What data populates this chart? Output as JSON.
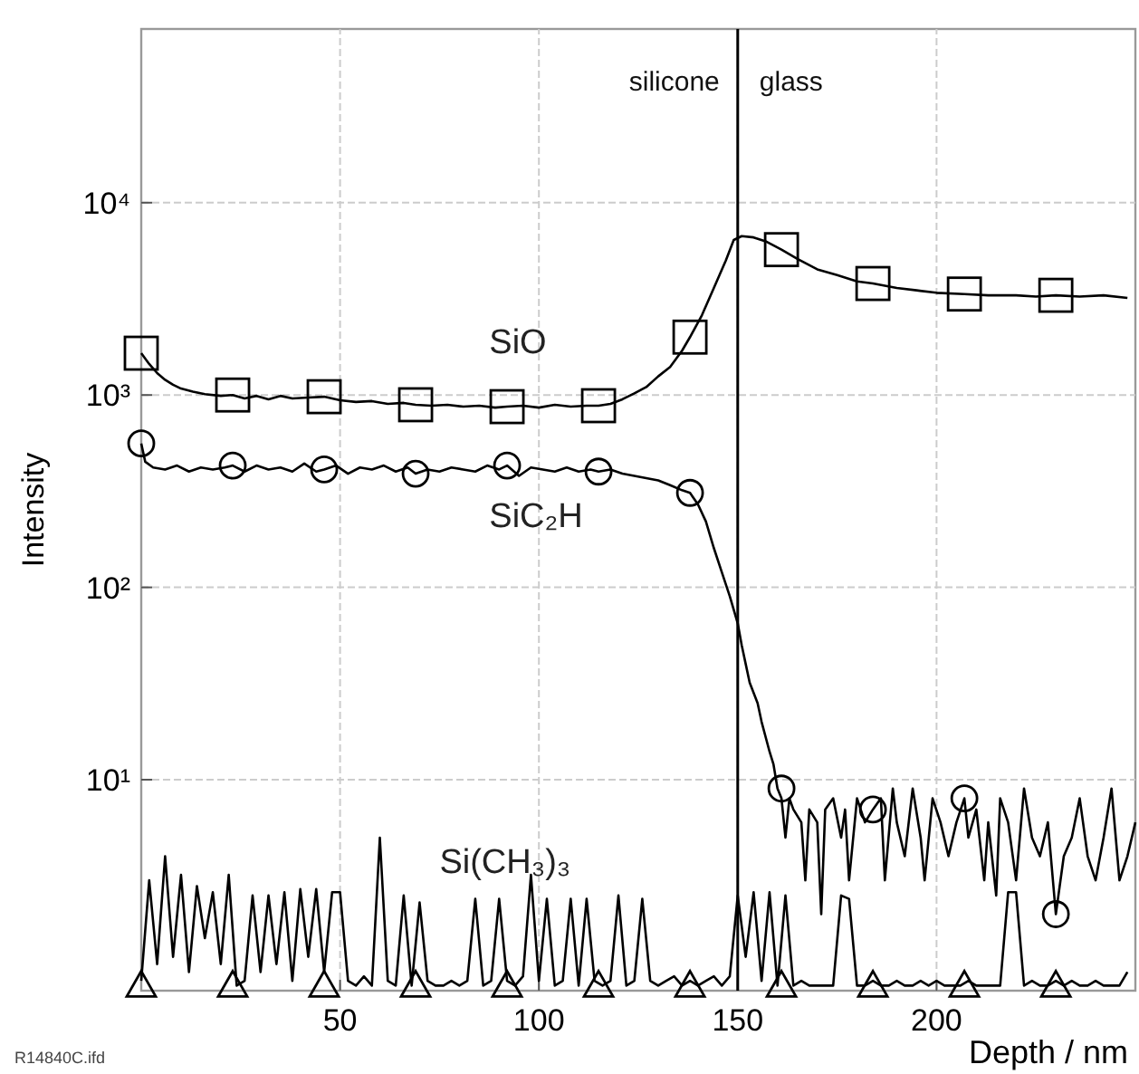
{
  "chart_data": {
    "type": "line",
    "xlabel": "Depth / nm",
    "ylabel": "Intensity",
    "log": "y",
    "grid": true,
    "xlim": [
      0,
      250
    ],
    "xticks": [
      50,
      100,
      150,
      200
    ],
    "ylim": [
      0.8,
      80000
    ],
    "yticks": [
      {
        "value": 10,
        "label": "10¹"
      },
      {
        "value": 100,
        "label": "10²"
      },
      {
        "value": 1000,
        "label": "10³"
      },
      {
        "value": 10000,
        "label": "10⁴"
      }
    ],
    "ref_lines": [
      {
        "axis": "x",
        "value": 150,
        "color": "#000000"
      }
    ],
    "annotations": [
      "silicone",
      "glass",
      "R14840C.ifd"
    ],
    "series": [
      {
        "type": "scatter",
        "color": "#000000",
        "marker": "square",
        "x": [
          0,
          23,
          46,
          69,
          92,
          115,
          138,
          161,
          184,
          207,
          230
        ],
        "values": [
          1650,
          1000,
          980,
          890,
          870,
          880,
          2000,
          5700,
          3800,
          3350,
          3300
        ]
      },
      {
        "type": "scatter",
        "color": "#000000",
        "marker": "circle",
        "x": [
          0,
          23,
          46,
          69,
          92,
          115,
          138,
          161,
          184,
          207,
          230
        ],
        "values": [
          560,
          430,
          410,
          390,
          430,
          400,
          310,
          9,
          7,
          8,
          2
        ]
      },
      {
        "type": "scatter",
        "color": "#000000",
        "marker": "triangle",
        "x": [
          0,
          23,
          46,
          69,
          92,
          115,
          138,
          161,
          184,
          207,
          230
        ],
        "values": [
          0.85,
          0.85,
          0.85,
          0.85,
          0.85,
          0.85,
          0.85,
          0.85,
          0.85,
          0.85,
          0.85
        ]
      },
      {
        "name": "SiO",
        "color": "#000000",
        "x": [
          0,
          2,
          4,
          6,
          8,
          10,
          13,
          16,
          20,
          23,
          26,
          29,
          32,
          35,
          38,
          42,
          46,
          50,
          54,
          58,
          62,
          66,
          69,
          73,
          77,
          81,
          85,
          89,
          92,
          96,
          100,
          104,
          108,
          112,
          115,
          118,
          121,
          124,
          127,
          130,
          133,
          136,
          138,
          141,
          144,
          147,
          149,
          151,
          154,
          157,
          161,
          165,
          170,
          175,
          180,
          184,
          190,
          195,
          200,
          207,
          213,
          220,
          225,
          230,
          236,
          242,
          248
        ],
        "values": [
          1650,
          1450,
          1300,
          1200,
          1130,
          1080,
          1040,
          1010,
          990,
          1000,
          960,
          990,
          950,
          990,
          960,
          970,
          980,
          940,
          920,
          930,
          900,
          910,
          890,
          880,
          890,
          870,
          880,
          860,
          870,
          880,
          860,
          890,
          870,
          880,
          880,
          900,
          950,
          1020,
          1100,
          1250,
          1400,
          1700,
          2000,
          2600,
          3600,
          5000,
          6400,
          6700,
          6600,
          6300,
          5700,
          5100,
          4500,
          4200,
          3900,
          3800,
          3600,
          3500,
          3400,
          3350,
          3300,
          3300,
          3250,
          3300,
          3250,
          3300,
          3200
        ]
      },
      {
        "name": "SiC₂H",
        "color": "#000000",
        "x": [
          0,
          1,
          3,
          6,
          9,
          12,
          15,
          18,
          21,
          23,
          26,
          29,
          32,
          35,
          38,
          41,
          44,
          46,
          49,
          52,
          55,
          58,
          61,
          64,
          67,
          69,
          72,
          75,
          78,
          81,
          84,
          87,
          90,
          92,
          95,
          98,
          101,
          104,
          107,
          110,
          113,
          115,
          118,
          121,
          124,
          127,
          130,
          133,
          136,
          138,
          140,
          142,
          144,
          146,
          148,
          150,
          151,
          152,
          153,
          155,
          156,
          158,
          159,
          160,
          161,
          162,
          163,
          164,
          166,
          167,
          168,
          170,
          171,
          172,
          174,
          176,
          177,
          178,
          180,
          182,
          184,
          186,
          187,
          189,
          190,
          192,
          194,
          196,
          197,
          199,
          201,
          203,
          205,
          207,
          208,
          210,
          212,
          213,
          215,
          216,
          218,
          220,
          222,
          224,
          226,
          228,
          230,
          232,
          234,
          236,
          238,
          240,
          242,
          244,
          246,
          248,
          250
        ],
        "values": [
          560,
          450,
          420,
          410,
          430,
          400,
          420,
          410,
          420,
          430,
          400,
          430,
          410,
          420,
          400,
          440,
          400,
          410,
          430,
          390,
          420,
          410,
          430,
          400,
          420,
          390,
          410,
          400,
          420,
          410,
          400,
          430,
          410,
          430,
          380,
          420,
          410,
          400,
          420,
          400,
          410,
          400,
          410,
          390,
          380,
          370,
          360,
          340,
          320,
          310,
          270,
          220,
          160,
          120,
          90,
          65,
          50,
          40,
          32,
          25,
          20,
          14,
          12,
          9,
          8,
          5,
          8,
          7,
          6,
          3,
          7,
          6,
          2,
          7,
          8,
          5,
          7,
          3,
          8,
          6,
          7,
          8,
          3,
          9,
          6,
          4,
          9,
          5,
          3,
          8,
          6,
          4,
          6,
          8,
          5,
          7,
          3,
          6,
          2.5,
          8,
          6,
          3,
          9,
          5,
          4,
          6,
          2,
          4,
          5,
          8,
          4,
          3,
          5,
          9,
          3,
          4,
          6
        ]
      },
      {
        "name": "Si(CH₃)₃",
        "color": "#000000",
        "x": [
          0,
          2,
          4,
          6,
          8,
          10,
          12,
          14,
          16,
          18,
          20,
          22,
          24,
          26,
          28,
          30,
          32,
          34,
          36,
          38,
          40,
          42,
          44,
          46,
          48,
          50,
          52,
          54,
          56,
          58,
          60,
          62,
          64,
          66,
          68,
          70,
          72,
          74,
          76,
          78,
          80,
          82,
          84,
          86,
          88,
          90,
          92,
          94,
          96,
          98,
          100,
          102,
          104,
          106,
          108,
          110,
          112,
          114,
          116,
          118,
          120,
          122,
          124,
          126,
          128,
          130,
          132,
          134,
          136,
          138,
          140,
          142,
          144,
          146,
          148,
          150,
          152,
          154,
          156,
          158,
          160,
          162,
          164,
          166,
          168,
          170,
          172,
          174,
          176,
          178,
          180,
          182,
          184,
          186,
          188,
          190,
          192,
          194,
          196,
          198,
          200,
          202,
          204,
          206,
          208,
          210,
          212,
          214,
          216,
          218,
          220,
          222,
          224,
          226,
          228,
          230,
          232,
          234,
          236,
          238,
          240,
          242,
          244,
          246,
          248
        ],
        "values": [
          0.9,
          3,
          1.1,
          4,
          1.2,
          3.2,
          1,
          2.8,
          1.5,
          2.6,
          1.1,
          3.2,
          0.85,
          0.9,
          2.5,
          1,
          2.5,
          1.1,
          2.6,
          0.9,
          2.7,
          1.2,
          2.7,
          1,
          2.6,
          2.6,
          0.9,
          0.85,
          0.95,
          0.85,
          5,
          0.9,
          0.85,
          2.5,
          0.85,
          2.3,
          0.9,
          0.85,
          0.85,
          0.9,
          0.85,
          0.9,
          2.4,
          0.85,
          0.9,
          2.4,
          0.9,
          0.85,
          0.95,
          3.2,
          0.9,
          2.4,
          0.85,
          0.9,
          2.4,
          0.85,
          2.4,
          0.9,
          0.85,
          0.9,
          2.5,
          0.85,
          0.9,
          2.4,
          0.9,
          0.85,
          0.9,
          0.95,
          0.85,
          0.9,
          0.85,
          0.9,
          0.95,
          0.85,
          0.95,
          2.5,
          1.2,
          2.6,
          0.9,
          2.6,
          0.85,
          2.5,
          0.85,
          0.9,
          0.85,
          0.85,
          0.85,
          0.85,
          2.5,
          2.4,
          0.85,
          0.85,
          0.9,
          0.85,
          0.85,
          0.9,
          0.85,
          0.85,
          0.9,
          0.85,
          0.9,
          0.85,
          0.85,
          0.85,
          0.9,
          0.85,
          0.85,
          0.85,
          0.85,
          2.6,
          2.6,
          0.85,
          0.9,
          0.85,
          0.85,
          0.9,
          0.85,
          0.9,
          0.85,
          0.85,
          0.9,
          0.85,
          0.85,
          0.85,
          1.0
        ]
      }
    ]
  }
}
